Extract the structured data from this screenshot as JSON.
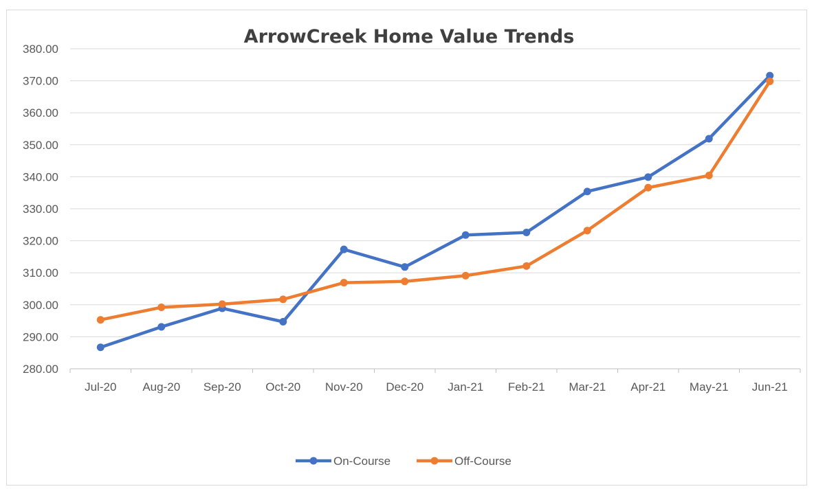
{
  "chart_data": {
    "type": "line",
    "title": "ArrowCreek Home Value Trends",
    "categories": [
      "Jul-20",
      "Aug-20",
      "Sep-20",
      "Oct-20",
      "Nov-20",
      "Dec-20",
      "Jan-21",
      "Feb-21",
      "Mar-21",
      "Apr-21",
      "May-21",
      "Jun-21"
    ],
    "series": [
      {
        "name": "On-Course",
        "color": "#4472c4",
        "values": [
          286.7,
          293.1,
          298.9,
          294.7,
          317.3,
          311.8,
          321.8,
          322.6,
          335.4,
          339.9,
          351.9,
          371.6
        ]
      },
      {
        "name": "Off-Course",
        "color": "#ed7d31",
        "values": [
          295.3,
          299.2,
          300.2,
          301.7,
          306.9,
          307.3,
          309.1,
          312.1,
          323.2,
          336.6,
          340.4,
          369.8
        ]
      }
    ],
    "ylim": [
      280,
      380
    ],
    "yticks": [
      "280.00",
      "290.00",
      "300.00",
      "310.00",
      "320.00",
      "330.00",
      "340.00",
      "350.00",
      "360.00",
      "370.00",
      "380.00"
    ],
    "grid": true,
    "legend_position": "bottom",
    "xlabel": "",
    "ylabel": ""
  }
}
